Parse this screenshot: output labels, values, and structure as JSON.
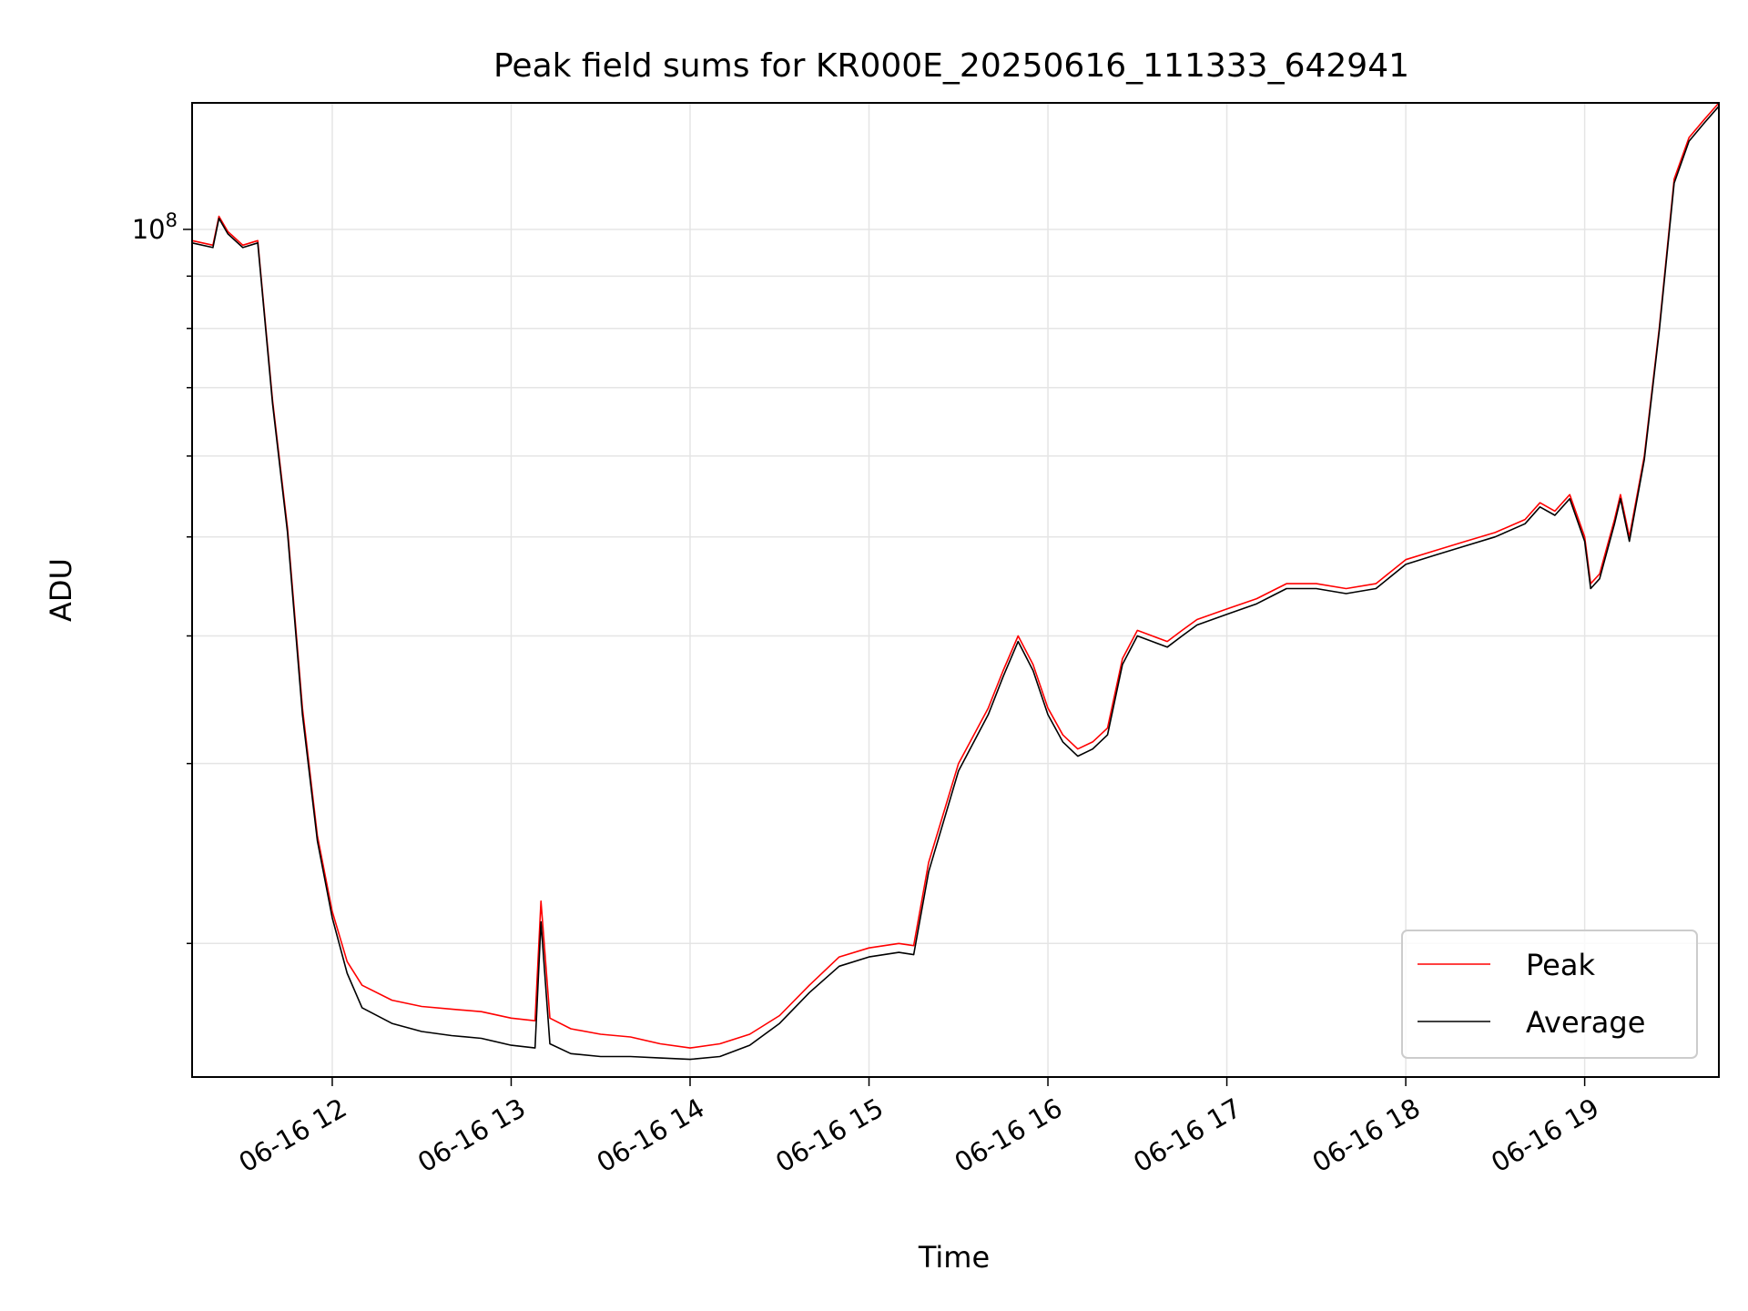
{
  "chart_data": {
    "type": "line",
    "title": "Peak field sums for KR000E_20250616_111333_642941",
    "xlabel": "Time",
    "ylabel": "ADU",
    "yscale": "log",
    "ylim": [
      14800000,
      133000000
    ],
    "xlim": [
      "2025-06-16 11:13",
      "2025-06-16 19:45"
    ],
    "grid": true,
    "legend_position": "lower-right",
    "x_ticks": [
      "06-16 12",
      "06-16 13",
      "06-16 14",
      "06-16 15",
      "06-16 16",
      "06-16 17",
      "06-16 18",
      "06-16 19"
    ],
    "y_ticks": [
      {
        "label": "10",
        "exponent": "8",
        "value": 100000000
      }
    ],
    "x": [
      "11:13",
      "11:20",
      "11:22",
      "11:25",
      "11:30",
      "11:35",
      "11:40",
      "11:45",
      "11:50",
      "11:55",
      "12:00",
      "12:05",
      "12:10",
      "12:20",
      "12:30",
      "12:40",
      "12:50",
      "13:00",
      "13:08",
      "13:10",
      "13:13",
      "13:20",
      "13:30",
      "13:40",
      "13:50",
      "14:00",
      "14:10",
      "14:20",
      "14:30",
      "14:40",
      "14:50",
      "15:00",
      "15:10",
      "15:15",
      "15:20",
      "15:30",
      "15:40",
      "15:45",
      "15:50",
      "15:55",
      "16:00",
      "16:05",
      "16:10",
      "16:15",
      "16:20",
      "16:25",
      "16:30",
      "16:35",
      "16:40",
      "16:45",
      "16:50",
      "17:00",
      "17:10",
      "17:20",
      "17:30",
      "17:40",
      "17:50",
      "18:00",
      "18:10",
      "18:20",
      "18:30",
      "18:40",
      "18:45",
      "18:50",
      "18:55",
      "19:00",
      "19:02",
      "19:05",
      "19:10",
      "19:12",
      "19:15",
      "19:20",
      "19:25",
      "19:30",
      "19:35",
      "19:40",
      "19:45"
    ],
    "series": [
      {
        "name": "Peak",
        "color": "#ff0000",
        "values": [
          97500000,
          96500000,
          103000000,
          99500000,
          96500000,
          97500000,
          68000000,
          51000000,
          34000000,
          25500000,
          21500000,
          19200000,
          18200000,
          17600000,
          17350000,
          17250000,
          17150000,
          16900000,
          16800000,
          22000000,
          16900000,
          16500000,
          16300000,
          16200000,
          15950000,
          15800000,
          15950000,
          16300000,
          17000000,
          18200000,
          19400000,
          19800000,
          20000000,
          19900000,
          24000000,
          30000000,
          34000000,
          37000000,
          40000000,
          37500000,
          34000000,
          32000000,
          31000000,
          31500000,
          32500000,
          38000000,
          40500000,
          40000000,
          39500000,
          40500000,
          41500000,
          42500000,
          43500000,
          45000000,
          45000000,
          44500000,
          45000000,
          47500000,
          48500000,
          49500000,
          50500000,
          52000000,
          54000000,
          53000000,
          55000000,
          50000000,
          45000000,
          46000000,
          52000000,
          55000000,
          50000000,
          60000000,
          80000000,
          112000000,
          123000000,
          128000000,
          133000000
        ]
      },
      {
        "name": "Average",
        "color": "#000000",
        "values": [
          97000000,
          96000000,
          102500000,
          99000000,
          96000000,
          97000000,
          67500000,
          50500000,
          33500000,
          25200000,
          21200000,
          18700000,
          17300000,
          16700000,
          16400000,
          16250000,
          16150000,
          15900000,
          15800000,
          21000000,
          15950000,
          15600000,
          15500000,
          15500000,
          15450000,
          15400000,
          15500000,
          15900000,
          16700000,
          17900000,
          19000000,
          19400000,
          19600000,
          19500000,
          23500000,
          29500000,
          33500000,
          36500000,
          39500000,
          37000000,
          33500000,
          31500000,
          30500000,
          31000000,
          32000000,
          37500000,
          40000000,
          39500000,
          39000000,
          40000000,
          41000000,
          42000000,
          43000000,
          44500000,
          44500000,
          44000000,
          44500000,
          47000000,
          48000000,
          49000000,
          50000000,
          51500000,
          53500000,
          52500000,
          54500000,
          49500000,
          44500000,
          45500000,
          51500000,
          54500000,
          49500000,
          59500000,
          79500000,
          111000000,
          122000000,
          127000000,
          132000000
        ]
      }
    ]
  }
}
